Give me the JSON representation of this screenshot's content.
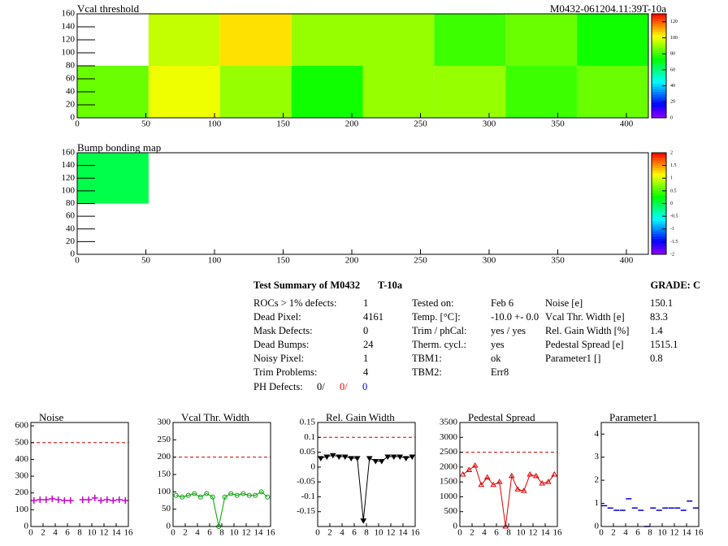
{
  "chart_data": [
    {
      "type": "heatmap",
      "title": "Vcal threshold",
      "subtitle": "M0432-061204.11:39T-10a",
      "xbins": [
        0,
        52,
        104,
        156,
        208,
        260,
        312,
        364,
        416
      ],
      "ybins": [
        0,
        80,
        160
      ],
      "z": [
        [
          85,
          100,
          90,
          75,
          90,
          90,
          80,
          85
        ],
        [
          null,
          95,
          105,
          90,
          90,
          80,
          85,
          75
        ]
      ],
      "xlim": [
        0,
        416
      ],
      "ylim": [
        0,
        160
      ],
      "xticks": [
        0,
        50,
        100,
        150,
        200,
        250,
        300,
        350,
        400
      ],
      "yticks": [
        0,
        20,
        40,
        60,
        80,
        100,
        120,
        140,
        160
      ],
      "zlim": [
        0,
        130
      ],
      "zticks": [
        0,
        20,
        40,
        60,
        80,
        100,
        120
      ]
    },
    {
      "type": "heatmap",
      "title": "Bump bonding map",
      "xbins": [
        0,
        52,
        104,
        156,
        208,
        260,
        312,
        364,
        416
      ],
      "ybins": [
        0,
        80,
        160
      ],
      "z": [
        [
          null,
          null,
          null,
          null,
          null,
          null,
          null,
          null
        ],
        [
          0,
          null,
          null,
          null,
          null,
          null,
          null,
          null
        ]
      ],
      "xlim": [
        0,
        416
      ],
      "ylim": [
        0,
        160
      ],
      "xticks": [
        0,
        50,
        100,
        150,
        200,
        250,
        300,
        350,
        400
      ],
      "yticks": [
        0,
        20,
        40,
        60,
        80,
        100,
        120,
        140,
        160
      ],
      "zlim": [
        -2,
        2
      ],
      "zticks": [
        -2,
        -1.5,
        -1,
        -0.5,
        0,
        0.5,
        1,
        1.5,
        2
      ]
    },
    {
      "type": "line",
      "title": "Noise",
      "x": [
        0.5,
        1.5,
        2.5,
        3.5,
        4.5,
        5.5,
        6.5,
        7.5,
        8.5,
        9.5,
        10.5,
        11.5,
        12.5,
        13.5,
        14.5,
        15.5
      ],
      "values": [
        155,
        160,
        160,
        165,
        160,
        155,
        155,
        null,
        160,
        160,
        170,
        155,
        160,
        155,
        160,
        155
      ],
      "color": "#cc00cc",
      "marker": "cross",
      "line": false,
      "ref_line": 500,
      "xlim": [
        0,
        16
      ],
      "xticks": [
        0,
        2,
        4,
        6,
        8,
        10,
        12,
        14,
        16
      ],
      "ylim": [
        0,
        620
      ],
      "yticks": [
        0,
        100,
        200,
        300,
        400,
        500,
        600
      ]
    },
    {
      "type": "line",
      "title": "Vcal Thr. Width",
      "x": [
        0.5,
        1.5,
        2.5,
        3.5,
        4.5,
        5.5,
        6.5,
        7.5,
        8.5,
        9.5,
        10.5,
        11.5,
        12.5,
        13.5,
        14.5,
        15.5
      ],
      "values": [
        90,
        85,
        90,
        95,
        85,
        95,
        85,
        0,
        85,
        95,
        90,
        95,
        90,
        90,
        100,
        85
      ],
      "color": "#00a000",
      "marker": "circle",
      "line": true,
      "ref_line": 200,
      "xlim": [
        0,
        16
      ],
      "xticks": [
        0,
        2,
        4,
        6,
        8,
        10,
        12,
        14,
        16
      ],
      "ylim": [
        0,
        300
      ],
      "yticks": [
        0,
        50,
        100,
        150,
        200,
        250,
        300
      ]
    },
    {
      "type": "line",
      "title": "Rel. Gain Width",
      "x": [
        0.5,
        1.5,
        2.5,
        3.5,
        4.5,
        5.5,
        6.5,
        7.5,
        8.5,
        9.5,
        10.5,
        11.5,
        12.5,
        13.5,
        14.5,
        15.5
      ],
      "values": [
        0.03,
        0.035,
        0.04,
        0.035,
        0.035,
        0.03,
        0.03,
        -0.18,
        0.03,
        0.02,
        0.02,
        0.035,
        0.035,
        0.035,
        0.03,
        0.035
      ],
      "color": "#000000",
      "marker": "triangle-down",
      "line": true,
      "ref_line": 0.1,
      "xlim": [
        0,
        16
      ],
      "xticks": [
        0,
        2,
        4,
        6,
        8,
        10,
        12,
        14,
        16
      ],
      "ylim": [
        -0.2,
        0.15
      ],
      "yticks": [
        -0.15,
        -0.1,
        -0.05,
        0,
        0.05,
        0.1,
        0.15
      ]
    },
    {
      "type": "line",
      "title": "Pedestal Spread",
      "x": [
        0.5,
        1.5,
        2.5,
        3.5,
        4.5,
        5.5,
        6.5,
        7.5,
        8.5,
        9.5,
        10.5,
        11.5,
        12.5,
        13.5,
        14.5,
        15.5
      ],
      "values": [
        1750,
        1900,
        2050,
        1400,
        1650,
        1400,
        1500,
        0,
        1700,
        1250,
        1200,
        1750,
        1700,
        1450,
        1500,
        1750
      ],
      "color": "#dd0000",
      "marker": "triangle-up",
      "line": true,
      "ref_line": 2500,
      "xlim": [
        0,
        16
      ],
      "xticks": [
        0,
        2,
        4,
        6,
        8,
        10,
        12,
        14,
        16
      ],
      "ylim": [
        0,
        3500
      ],
      "yticks": [
        0,
        500,
        1000,
        1500,
        2000,
        2500,
        3000,
        3500
      ]
    },
    {
      "type": "line",
      "title": "Parameter1",
      "x": [
        0.5,
        1.5,
        2.5,
        3.5,
        4.5,
        5.5,
        6.5,
        7.5,
        8.5,
        9.5,
        10.5,
        11.5,
        12.5,
        13.5,
        14.5,
        15.5
      ],
      "values": [
        0.9,
        0.8,
        0.7,
        0.7,
        1.2,
        0.8,
        0.7,
        0,
        0.8,
        0.7,
        0.8,
        0.8,
        0.8,
        0.7,
        1.1,
        0.8
      ],
      "color": "#0000cc",
      "marker": "dash",
      "line": false,
      "xlim": [
        0,
        16
      ],
      "xticks": [
        0,
        2,
        4,
        6,
        8,
        10,
        12,
        14,
        16
      ],
      "ylim": [
        0,
        4.5
      ],
      "yticks": [
        0,
        1,
        2,
        3,
        4
      ]
    }
  ],
  "summary": {
    "title": "Test Summary of M0432",
    "module": "T-10a",
    "grade": "GRADE:  C",
    "col1": [
      [
        "ROCs > 1% defects:",
        "1"
      ],
      [
        "Dead Pixel:",
        "4161"
      ],
      [
        "Mask Defects:",
        "0"
      ],
      [
        "Dead Bumps:",
        "24"
      ],
      [
        "Noisy Pixel:",
        "1"
      ],
      [
        "Trim Problems:",
        "4"
      ]
    ],
    "ph_defects": {
      "label": "PH Defects:",
      "values": [
        "0/",
        "0/",
        "0"
      ],
      "colors": [
        "#000000",
        "#ff0000",
        "#0000ff"
      ]
    },
    "col2": [
      [
        "Tested on:",
        "Feb 6"
      ],
      [
        "Temp. [°C]:",
        "-10.0 +- 0.0"
      ],
      [
        "Trim / phCal:",
        "yes / yes"
      ],
      [
        "Therm. cycl.:",
        "yes"
      ],
      [
        "TBM1:",
        "ok"
      ],
      [
        "TBM2:",
        "Err8"
      ]
    ],
    "col3": [
      [
        "Noise [e]",
        "150.1"
      ],
      [
        "Vcal Thr. Width [e]",
        "83.3"
      ],
      [
        "Rel. Gain Width [%]",
        "1.4"
      ],
      [
        "Pedestal Spread [e]",
        "1515.1"
      ],
      [
        "Parameter1 []",
        "0.8"
      ]
    ]
  }
}
